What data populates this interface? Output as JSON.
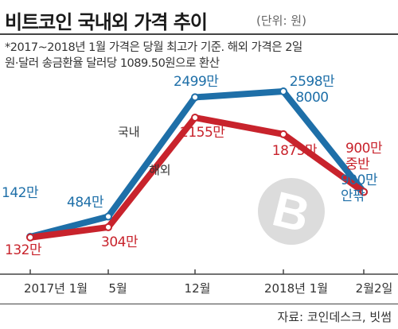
{
  "title": "비트코인 국내외 가격 추이",
  "unit": "(단위: 원)",
  "notes": [
    "*2017~2018년 1월 가격은 당월 최고가 기준. 해외 가격은 2일",
    "원·달러 송금환율 달러당 1089.50원으로 환산"
  ],
  "source": "자료: 코인데스크, 빗썸",
  "colors": {
    "domestic": "#1e6fa8",
    "overseas": "#c8232c",
    "axis": "#444444",
    "watermark": "#dcdcdc"
  },
  "chart_data": {
    "type": "line",
    "categories": [
      "2017년 1월",
      "5월",
      "12월",
      "2018년 1월",
      "2월2일"
    ],
    "series": [
      {
        "name": "국내",
        "values": [
          142,
          484,
          2499,
          2598.8,
          900
        ]
      },
      {
        "name": "해외",
        "values": [
          132,
          304,
          2155,
          1875,
          900
        ]
      }
    ],
    "data_labels": {
      "domestic": [
        "142만",
        "484만",
        "2499만",
        "2598만\n8000",
        "900만\n안팎"
      ],
      "overseas": [
        "132만",
        "304만",
        "2155만",
        "1875만",
        "900만\n중반"
      ]
    },
    "y_unit": "만원",
    "ylim": [
      0,
      2700
    ],
    "grid": false,
    "legend": "inline"
  }
}
